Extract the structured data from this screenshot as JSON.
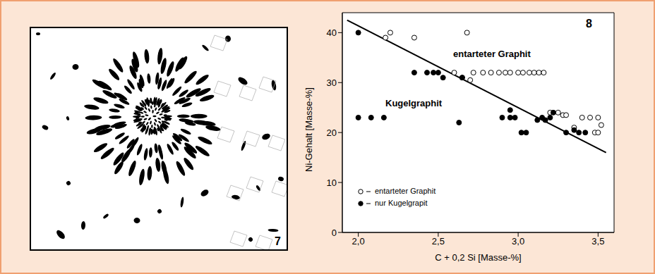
{
  "micrograph": {
    "label": "7"
  },
  "chart_data": {
    "type": "scatter",
    "title": "8",
    "x_label": "C + 0,2 Si [Masse-%]",
    "y_label": "Ni-Gehalt [Masse-%]",
    "xlim": [
      1.9,
      3.6
    ],
    "xticks": [
      {
        "value": 2,
        "label": "2,0"
      },
      {
        "value": 2.5,
        "label": "2,5"
      },
      {
        "value": 3,
        "label": "3,0"
      },
      {
        "value": 3.5,
        "label": "3,5"
      }
    ],
    "ylim": [
      0,
      44
    ],
    "yticks": [
      0,
      10,
      20,
      30,
      40
    ],
    "grid": false,
    "annotations": [
      "entarteter Graphit",
      "Kugelgraphit"
    ],
    "series": [
      {
        "name": "entarteter Graphit",
        "color": "#000000",
        "marker": "open_circle",
        "x": [
          2.17,
          2.2,
          2.35,
          2.68,
          2.6,
          2.65,
          2.7,
          2.72,
          2.78,
          2.83,
          2.88,
          2.92,
          2.95,
          3.0,
          3.03,
          3.07,
          3.1,
          3.13,
          3.16,
          3.2,
          3.25,
          3.28,
          3.3,
          3.35,
          3.4,
          3.45,
          3.5,
          3.52,
          3.48,
          3.5
        ],
        "values": [
          39,
          40,
          39,
          40,
          32,
          31,
          30.5,
          32,
          32,
          32,
          32,
          32,
          32,
          32,
          32,
          32,
          32,
          32,
          32,
          24,
          24,
          23.5,
          23.5,
          21,
          23,
          23,
          23,
          21.5,
          20,
          20
        ]
      },
      {
        "name": "nur Kugelgrapit",
        "color": "#000000",
        "marker": "filled_circle",
        "x": [
          2.0,
          2.0,
          2.08,
          2.16,
          2.35,
          2.43,
          2.47,
          2.5,
          2.53,
          2.63,
          2.65,
          2.9,
          2.95,
          2.95,
          2.98,
          3.02,
          3.05,
          3.12,
          3.15,
          3.17,
          3.2,
          3.22,
          3.3,
          3.35,
          3.38,
          3.42
        ],
        "values": [
          40,
          23,
          23,
          23,
          32,
          32,
          32,
          32,
          31,
          22,
          31,
          23,
          23,
          24.5,
          23,
          20,
          20,
          22.5,
          23,
          22.5,
          23,
          24,
          20,
          20.5,
          20,
          20
        ]
      }
    ],
    "trend_line": {
      "x": [
        1.93,
        3.55
      ],
      "values": [
        42.5,
        16
      ],
      "color": "#000000",
      "line_style": "solid"
    }
  }
}
